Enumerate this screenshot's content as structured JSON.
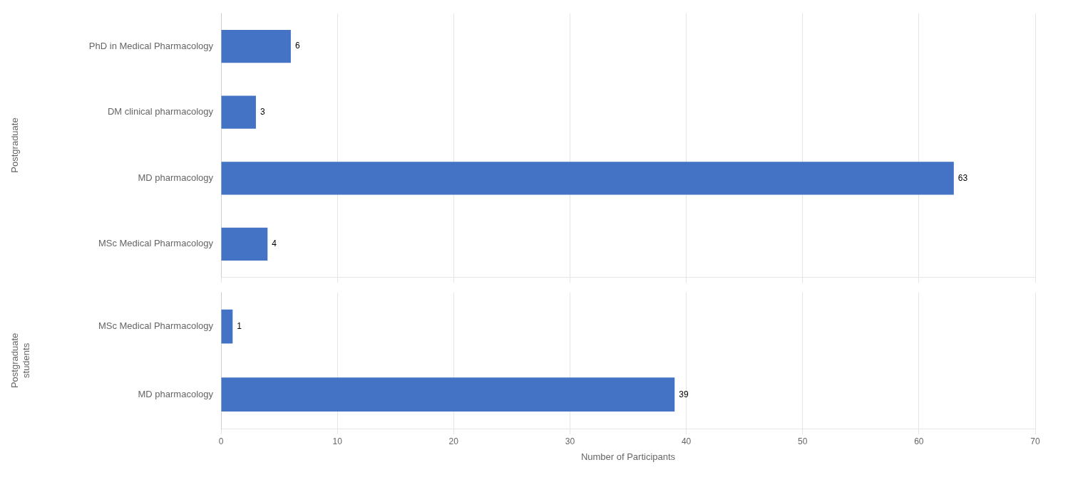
{
  "chart_data": [
    {
      "type": "bar",
      "orientation": "horizontal",
      "ylabel": "Postgraduate",
      "categories": [
        "MSc Medical Pharmacology",
        "MD pharmacology",
        "DM clinical pharmacology",
        "PhD in Medical Pharmacology"
      ],
      "values": [
        4,
        63,
        3,
        6
      ],
      "color": "#4472C4",
      "xlim": [
        0,
        70
      ],
      "xticks": [
        0,
        10,
        20,
        30,
        40,
        50,
        60,
        70
      ],
      "grid": true,
      "data_labels": true,
      "tick_labels": "y"
    },
    {
      "type": "bar",
      "orientation": "horizontal",
      "ylabel": "Postgraduate\nstudents",
      "xlabel": "Number of Participants",
      "categories": [
        "MD pharmacology",
        "MSc Medical Pharmacology"
      ],
      "values": [
        39,
        1
      ],
      "color": "#4472C4",
      "xlim": [
        0,
        70
      ],
      "xticks": [
        0,
        10,
        20,
        30,
        40,
        50,
        60,
        70
      ],
      "grid": true,
      "data_labels": true
    }
  ]
}
